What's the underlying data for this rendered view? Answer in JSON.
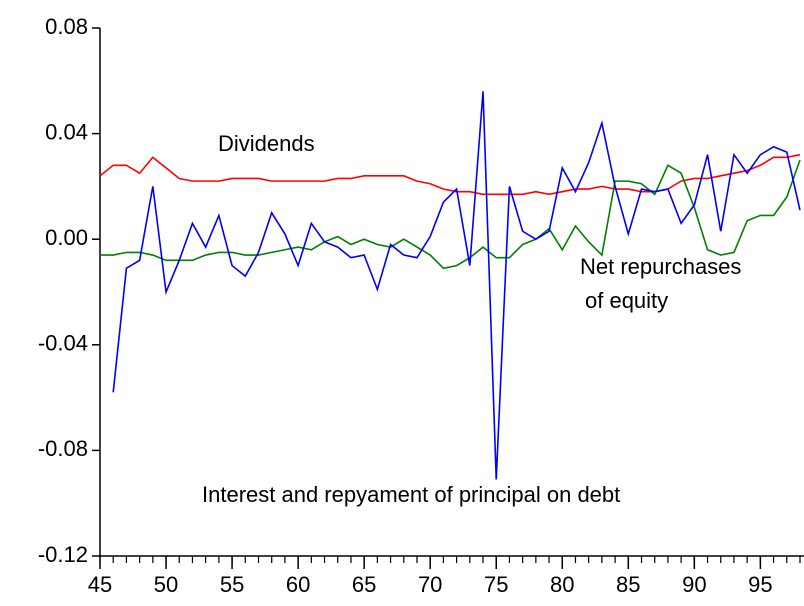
{
  "chart_data": {
    "type": "line",
    "x": [
      45,
      46,
      47,
      48,
      49,
      50,
      51,
      52,
      53,
      54,
      55,
      56,
      57,
      58,
      59,
      60,
      61,
      62,
      63,
      64,
      65,
      66,
      67,
      68,
      69,
      70,
      71,
      72,
      73,
      74,
      75,
      76,
      77,
      78,
      79,
      80,
      81,
      82,
      83,
      84,
      85,
      86,
      87,
      88,
      89,
      90,
      91,
      92,
      93,
      94,
      95,
      96,
      97,
      98
    ],
    "series": [
      {
        "name": "Dividends",
        "color": "#ff0000",
        "values": [
          0.024,
          0.028,
          0.028,
          0.025,
          0.031,
          0.027,
          0.023,
          0.022,
          0.022,
          0.022,
          0.023,
          0.023,
          0.023,
          0.022,
          0.022,
          0.022,
          0.022,
          0.022,
          0.023,
          0.023,
          0.024,
          0.024,
          0.024,
          0.024,
          0.022,
          0.021,
          0.019,
          0.018,
          0.018,
          0.017,
          0.017,
          0.017,
          0.017,
          0.018,
          0.017,
          0.018,
          0.019,
          0.019,
          0.02,
          0.019,
          0.019,
          0.018,
          0.018,
          0.019,
          0.022,
          0.023,
          0.023,
          0.024,
          0.025,
          0.026,
          0.028,
          0.031,
          0.031,
          0.032
        ]
      },
      {
        "name": "Net repurchases of equity",
        "color": "#008000",
        "values": [
          -0.006,
          -0.006,
          -0.005,
          -0.005,
          -0.006,
          -0.008,
          -0.008,
          -0.008,
          -0.006,
          -0.005,
          -0.005,
          -0.006,
          -0.006,
          -0.005,
          -0.004,
          -0.003,
          -0.004,
          -0.001,
          0.001,
          -0.002,
          0.0,
          -0.002,
          -0.003,
          0.0,
          -0.003,
          -0.006,
          -0.011,
          -0.01,
          -0.007,
          -0.003,
          -0.007,
          -0.007,
          -0.002,
          0.0,
          0.004,
          -0.004,
          0.005,
          -0.001,
          -0.006,
          0.022,
          0.022,
          0.021,
          0.017,
          0.028,
          0.025,
          0.012,
          -0.004,
          -0.006,
          -0.005,
          0.007,
          0.009,
          0.009,
          0.016,
          0.03
        ]
      },
      {
        "name": "Interest and repyament of principal on debt",
        "color": "#0000ff",
        "values": [
          null,
          -0.058,
          -0.011,
          -0.008,
          0.02,
          -0.02,
          -0.008,
          0.006,
          -0.003,
          0.009,
          -0.01,
          -0.014,
          -0.005,
          0.01,
          0.002,
          -0.01,
          0.006,
          -0.001,
          -0.003,
          -0.007,
          -0.006,
          -0.019,
          -0.002,
          -0.006,
          -0.007,
          0.001,
          0.014,
          0.019,
          -0.01,
          0.056,
          -0.091,
          0.02,
          0.003,
          0.0,
          0.003,
          0.027,
          0.018,
          0.029,
          0.044,
          0.02,
          0.002,
          0.019,
          0.018,
          0.019,
          0.006,
          0.013,
          0.032,
          0.003,
          0.032,
          0.025,
          0.032,
          0.035,
          0.033,
          0.011
        ]
      }
    ],
    "annotations": [
      "Dividends",
      "Net repurchases",
      "of equity",
      "Interest and repyament of principal on debt"
    ],
    "xlim": [
      45,
      98
    ],
    "xticks": [
      45,
      50,
      55,
      60,
      65,
      70,
      75,
      80,
      85,
      90,
      95
    ],
    "ylim": [
      -0.12,
      0.08
    ],
    "yticks": [
      -0.12,
      -0.08,
      -0.04,
      {
        "value": 0,
        "label": "0.00"
      },
      0.04,
      0.08
    ]
  }
}
